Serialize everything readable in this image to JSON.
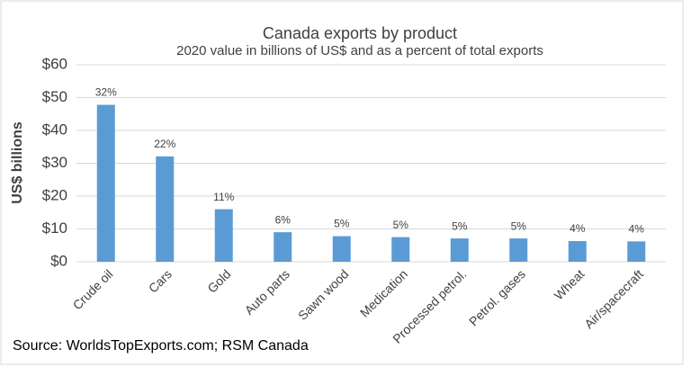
{
  "chart_data": {
    "type": "bar",
    "title": "Canada exports by product",
    "subtitle": "2020 value in billions of US$ and as a percent of total exports",
    "y_label": "US$ billions",
    "source": "Source: WorldsTopExports.com; RSM Canada",
    "categories": [
      "Crude oil",
      "Cars",
      "Gold",
      "Auto parts",
      "Sawn wood",
      "Medication",
      "Processed petrol.",
      "Petrol. gases",
      "Wheat",
      "Air/spacecraft"
    ],
    "values": [
      47.8,
      32.1,
      16.0,
      9.0,
      7.8,
      7.5,
      7.1,
      7.1,
      6.3,
      6.2
    ],
    "share_labels": [
      "32%",
      "22%",
      "11%",
      "6%",
      "5%",
      "5%",
      "5%",
      "5%",
      "4%",
      "4%"
    ],
    "color": "#5b9bd5",
    "ylim": [
      0,
      60
    ],
    "yticks": [
      {
        "value": 0,
        "label": "$0"
      },
      {
        "value": 10,
        "label": "$10"
      },
      {
        "value": 20,
        "label": "$20"
      },
      {
        "value": 30,
        "label": "$30"
      },
      {
        "value": 40,
        "label": "$40"
      },
      {
        "value": 50,
        "label": "$50"
      },
      {
        "value": 60,
        "label": "$60"
      }
    ],
    "grid": true
  }
}
